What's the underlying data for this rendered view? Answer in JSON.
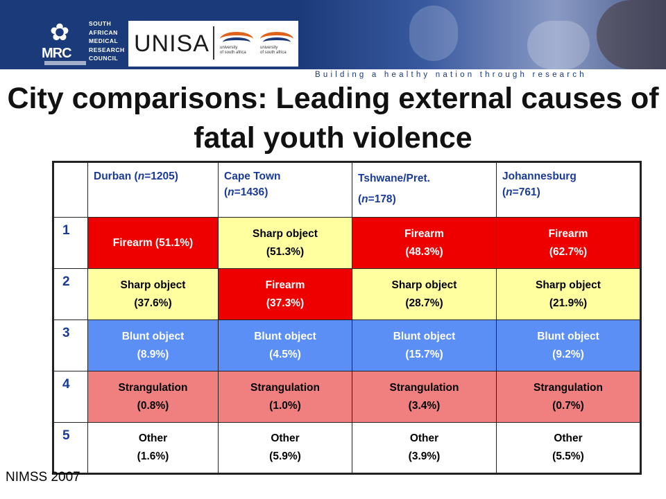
{
  "banner": {
    "mrc_acronym": "MRC",
    "mrc_name": "SOUTH\nAFRICAN\nMEDICAL\nRESEARCH\nCOUNCIL",
    "unisa_word": "UNISA",
    "unisa_logo_text": "university\nof south africa",
    "tagline": "Building a healthy nation through research",
    "colors": {
      "banner": "#1a3a7a",
      "unisa_orange": "#e0611a"
    }
  },
  "title": "City comparisons: Leading external causes of fatal youth violence",
  "table": {
    "headers": [
      {
        "city": "Durban",
        "n_label": "n",
        "n_value": "=1205",
        "prefix": " (",
        "suffix": ")"
      },
      {
        "city": "Cape Town",
        "n_label": "n",
        "n_value": "=1436",
        "prefix": "(",
        "suffix": ")"
      },
      {
        "city": "Tshwane/Pret.",
        "n_label": "n",
        "n_value": "=178",
        "prefix": "(",
        "suffix": ")"
      },
      {
        "city": "Johannesburg",
        "n_label": "n",
        "n_value": "=761",
        "prefix": "(",
        "suffix": ")"
      }
    ],
    "rows": [
      {
        "rank": "1",
        "cells": [
          {
            "label": "Firearm (51.1%)",
            "value": "",
            "type": "firearm"
          },
          {
            "label": "Sharp object",
            "value": "(51.3%)",
            "type": "sharp"
          },
          {
            "label": "Firearm",
            "value": "(48.3%)",
            "type": "firearm"
          },
          {
            "label": "Firearm",
            "value": "(62.7%)",
            "type": "firearm"
          }
        ]
      },
      {
        "rank": "2",
        "cells": [
          {
            "label": "Sharp object",
            "value": "(37.6%)",
            "type": "sharp"
          },
          {
            "label": "Firearm",
            "value": "(37.3%)",
            "type": "firearm"
          },
          {
            "label": "Sharp object",
            "value": "(28.7%)",
            "type": "sharp"
          },
          {
            "label": "Sharp object",
            "value": "(21.9%)",
            "type": "sharp"
          }
        ]
      },
      {
        "rank": "3",
        "cells": [
          {
            "label": "Blunt object",
            "value": "(8.9%)",
            "type": "blunt"
          },
          {
            "label": "Blunt object",
            "value": "(4.5%)",
            "type": "blunt"
          },
          {
            "label": "Blunt object",
            "value": "(15.7%)",
            "type": "blunt"
          },
          {
            "label": "Blunt object",
            "value": "(9.2%)",
            "type": "blunt"
          }
        ]
      },
      {
        "rank": "4",
        "cells": [
          {
            "label": "Strangulation",
            "value": "(0.8%)",
            "type": "strang"
          },
          {
            "label": "Strangulation",
            "value": "(1.0%)",
            "type": "strang"
          },
          {
            "label": "Strangulation",
            "value": "(3.4%)",
            "type": "strang"
          },
          {
            "label": "Strangulation",
            "value": "(0.7%)",
            "type": "strang"
          }
        ]
      },
      {
        "rank": "5",
        "cells": [
          {
            "label": "Other",
            "value": "(1.6%)",
            "type": "other"
          },
          {
            "label": "Other",
            "value": "(5.9%)",
            "type": "other"
          },
          {
            "label": "Other",
            "value": "(3.9%)",
            "type": "other"
          },
          {
            "label": "Other",
            "value": "(5.5%)",
            "type": "other"
          }
        ]
      }
    ],
    "cause_colors": {
      "firearm": "#ee0000",
      "sharp": "#ffffa0",
      "blunt": "#5b8ff5",
      "strang": "#f08080",
      "other": "#ffffff"
    }
  },
  "source": "NIMSS 2007"
}
